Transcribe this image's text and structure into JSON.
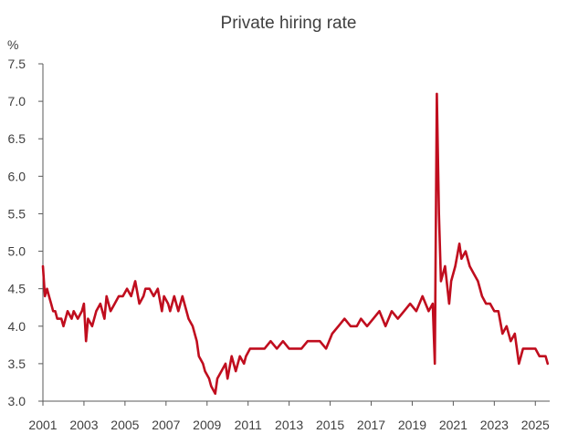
{
  "chart_data": {
    "type": "line",
    "title": "Private hiring rate",
    "ylabel": "%",
    "xlabel": "",
    "ylim": [
      3.0,
      7.5
    ],
    "xlim": [
      2001,
      2025.7
    ],
    "yticks": [
      "3.0",
      "3.5",
      "4.0",
      "4.5",
      "5.0",
      "5.5",
      "6.0",
      "6.5",
      "7.0",
      "7.5"
    ],
    "xticks": [
      "2001",
      "2003",
      "2005",
      "2007",
      "2009",
      "2011",
      "2013",
      "2015",
      "2017",
      "2019",
      "2021",
      "2023",
      "2025"
    ],
    "grid": false,
    "legend": "none",
    "color": "#c00d1e",
    "series": [
      {
        "x": [
          2001.0,
          2001.1,
          2001.2,
          2001.3,
          2001.4,
          2001.5,
          2001.6,
          2001.7,
          2001.9,
          2002.0,
          2002.2,
          2002.4,
          2002.5,
          2002.7,
          2002.9,
          2003.0,
          2003.1,
          2003.2,
          2003.4,
          2003.6,
          2003.8,
          2004.0,
          2004.1,
          2004.3,
          2004.5,
          2004.7,
          2004.9,
          2005.1,
          2005.3,
          2005.5,
          2005.7,
          2005.9,
          2006.0,
          2006.2,
          2006.4,
          2006.6,
          2006.8,
          2006.9,
          2007.1,
          2007.2,
          2007.4,
          2007.6,
          2007.8,
          2007.9,
          2008.1,
          2008.3,
          2008.5,
          2008.6,
          2008.8,
          2008.9,
          2009.1,
          2009.2,
          2009.4,
          2009.5,
          2009.7,
          2009.9,
          2010.0,
          2010.2,
          2010.4,
          2010.6,
          2010.8,
          2010.9,
          2011.1,
          2011.3,
          2011.5,
          2011.8,
          2012.1,
          2012.4,
          2012.7,
          2013.0,
          2013.3,
          2013.6,
          2013.9,
          2014.2,
          2014.5,
          2014.8,
          2015.1,
          2015.4,
          2015.7,
          2016.0,
          2016.3,
          2016.5,
          2016.8,
          2017.1,
          2017.4,
          2017.7,
          2018.0,
          2018.3,
          2018.6,
          2018.9,
          2019.2,
          2019.5,
          2019.8,
          2020.0,
          2020.1,
          2020.2,
          2020.3,
          2020.4,
          2020.6,
          2020.8,
          2020.9,
          2021.1,
          2021.3,
          2021.4,
          2021.6,
          2021.8,
          2022.0,
          2022.2,
          2022.4,
          2022.6,
          2022.8,
          2023.0,
          2023.2,
          2023.4,
          2023.6,
          2023.8,
          2024.0,
          2024.2,
          2024.4,
          2024.6,
          2024.8,
          2025.0,
          2025.2,
          2025.4,
          2025.5,
          2025.6
        ],
        "y": [
          4.8,
          4.4,
          4.5,
          4.4,
          4.3,
          4.2,
          4.2,
          4.1,
          4.1,
          4.0,
          4.2,
          4.1,
          4.2,
          4.1,
          4.2,
          4.3,
          3.8,
          4.1,
          4.0,
          4.2,
          4.3,
          4.1,
          4.4,
          4.2,
          4.3,
          4.4,
          4.4,
          4.5,
          4.4,
          4.6,
          4.3,
          4.4,
          4.5,
          4.5,
          4.4,
          4.5,
          4.2,
          4.4,
          4.3,
          4.2,
          4.4,
          4.2,
          4.4,
          4.3,
          4.1,
          4.0,
          3.8,
          3.6,
          3.5,
          3.4,
          3.3,
          3.2,
          3.1,
          3.3,
          3.4,
          3.5,
          3.3,
          3.6,
          3.4,
          3.6,
          3.5,
          3.6,
          3.7,
          3.7,
          3.7,
          3.7,
          3.8,
          3.7,
          3.8,
          3.7,
          3.7,
          3.7,
          3.8,
          3.8,
          3.8,
          3.7,
          3.9,
          4.0,
          4.1,
          4.0,
          4.0,
          4.1,
          4.0,
          4.1,
          4.2,
          4.0,
          4.2,
          4.1,
          4.2,
          4.3,
          4.2,
          4.4,
          4.2,
          4.3,
          3.5,
          7.1,
          5.5,
          4.6,
          4.8,
          4.3,
          4.6,
          4.8,
          5.1,
          4.9,
          5.0,
          4.8,
          4.7,
          4.6,
          4.4,
          4.3,
          4.3,
          4.2,
          4.2,
          3.9,
          4.0,
          3.8,
          3.9,
          3.5,
          3.7,
          3.7,
          3.7,
          3.7,
          3.6,
          3.6,
          3.6,
          3.5
        ]
      }
    ]
  }
}
